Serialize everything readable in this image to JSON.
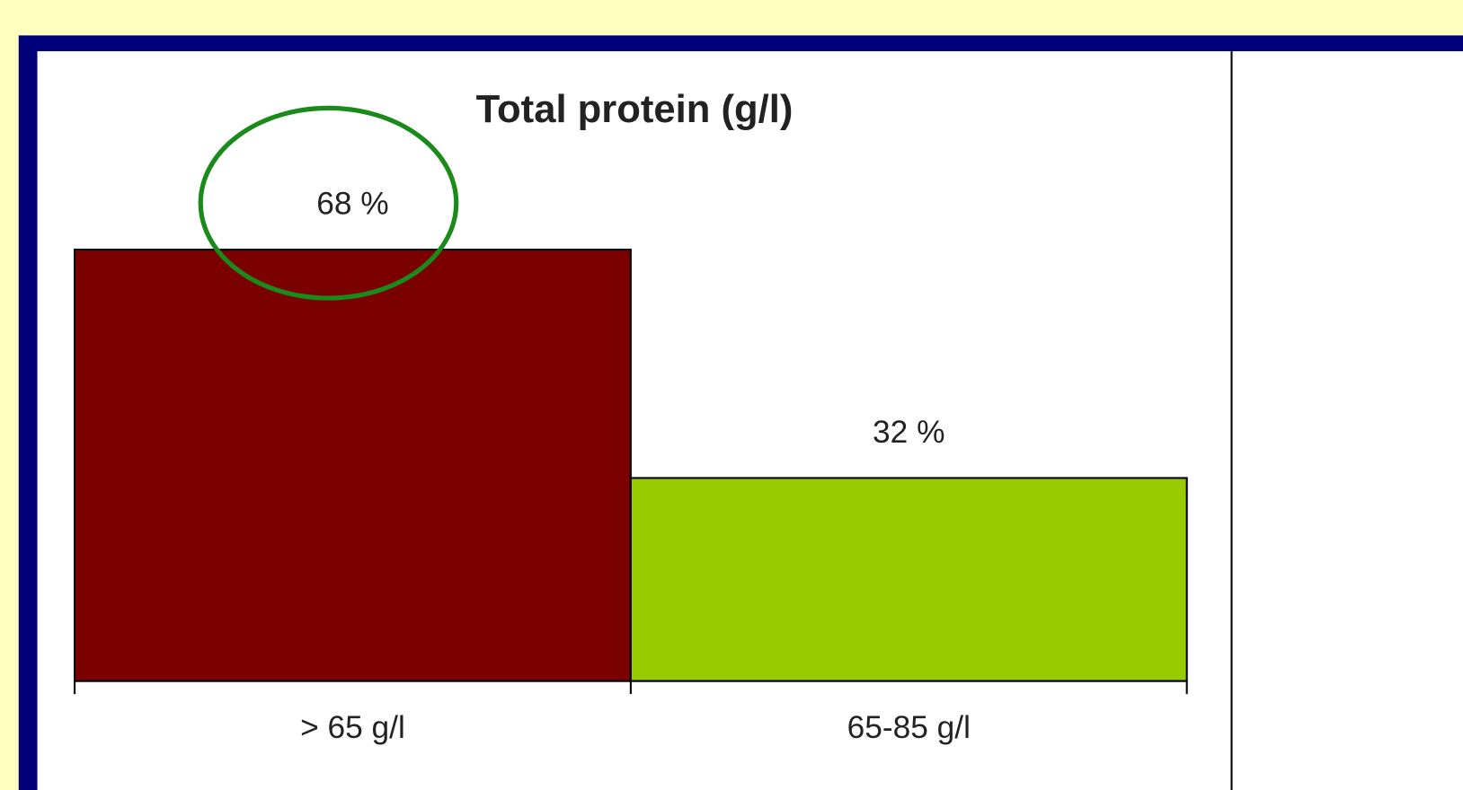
{
  "chart_data": {
    "type": "bar",
    "title": "Total protein  (g/l)",
    "categories": [
      "> 65 g/l",
      "65-85 g/l"
    ],
    "values": [
      68,
      32
    ],
    "value_labels": [
      "68  %",
      "32  %"
    ],
    "colors": [
      "#7b0000",
      "#99cc00"
    ],
    "ylim": [
      0,
      100
    ]
  }
}
